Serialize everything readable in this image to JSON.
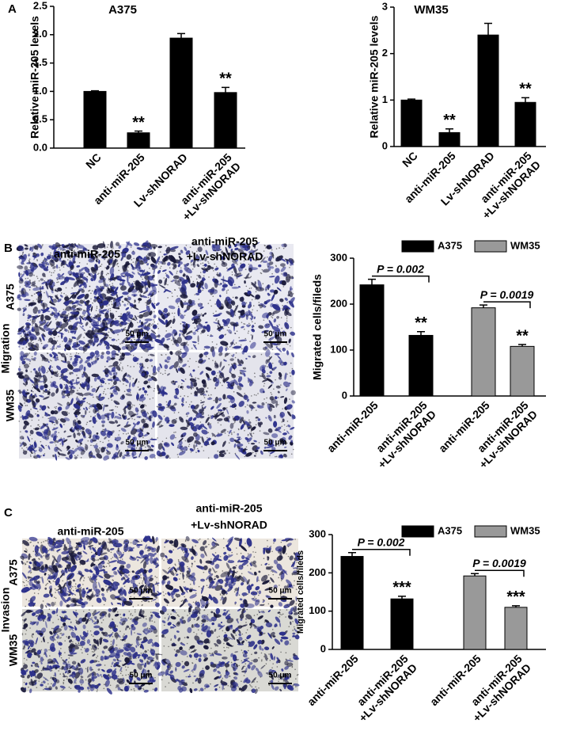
{
  "chart_data": [
    {
      "type": "bar",
      "title": "A375",
      "y_label": "Relative miR-205 levels",
      "categories": [
        [
          "NC"
        ],
        [
          "anti-miR-205"
        ],
        [
          "Lv-shNORAD"
        ],
        [
          "anti-miR-205",
          "+Lv-shNORAD"
        ]
      ],
      "values": [
        1.0,
        0.27,
        1.94,
        0.98
      ],
      "errors": [
        0.01,
        0.03,
        0.08,
        0.09
      ],
      "color": "#000000",
      "significance": [
        null,
        "**",
        null,
        "**"
      ],
      "ylim": [
        0,
        2.5
      ],
      "yticks": [
        {
          "value": 0,
          "label": "0.0"
        },
        {
          "value": 0.5,
          "label": "0.5"
        },
        {
          "value": 1,
          "label": "1.0"
        },
        {
          "value": 1.5,
          "label": "1.5"
        },
        {
          "value": 2,
          "label": "2.0"
        },
        {
          "value": 2.5,
          "label": "2.5"
        }
      ]
    },
    {
      "type": "bar",
      "title": "WM35",
      "y_label": "Relative miR-205 levels",
      "categories": [
        [
          "NC"
        ],
        [
          "anti-miR-205"
        ],
        [
          "Lv-shNORAD"
        ],
        [
          "anti-miR-205",
          "+Lv-shNORAD"
        ]
      ],
      "values": [
        1.0,
        0.3,
        2.4,
        0.95
      ],
      "errors": [
        0.02,
        0.08,
        0.25,
        0.1
      ],
      "color": "#000000",
      "significance": [
        null,
        "**",
        null,
        "**"
      ],
      "ylim": [
        0,
        3
      ],
      "yticks": [
        0,
        1,
        2,
        3
      ]
    },
    {
      "type": "grouped_bar",
      "y_label": "Migrated cells/fileds",
      "categories": [
        [
          "anti-miR-205"
        ],
        [
          "anti-miR-205",
          "+Lv-shNORAD"
        ]
      ],
      "series": [
        {
          "name": "A375",
          "color": "#000000",
          "values": [
            242,
            132
          ],
          "errors": [
            12,
            8
          ],
          "significance": [
            null,
            "**"
          ],
          "p_value": "P = 0.002"
        },
        {
          "name": "WM35",
          "color": "#999999",
          "values": [
            192,
            108
          ],
          "errors": [
            6,
            4
          ],
          "significance": [
            null,
            "**"
          ],
          "p_value": "P = 0.0019"
        }
      ],
      "ylim": [
        0,
        300
      ],
      "yticks": [
        0,
        100,
        200,
        300
      ]
    },
    {
      "type": "grouped_bar",
      "y_label": "Migrated cells/fileds",
      "categories": [
        [
          "anti-miR-205"
        ],
        [
          "anti-miR-205",
          "+Lv-shNORAD"
        ]
      ],
      "series": [
        {
          "name": "A375",
          "color": "#000000",
          "values": [
            243,
            132
          ],
          "errors": [
            10,
            7
          ],
          "significance": [
            null,
            "***"
          ],
          "p_value": "P = 0.002"
        },
        {
          "name": "WM35",
          "color": "#999999",
          "values": [
            192,
            110
          ],
          "errors": [
            6,
            4
          ],
          "significance": [
            null,
            "***"
          ],
          "p_value": "P = 0.0019"
        }
      ],
      "ylim": [
        0,
        300
      ],
      "yticks": [
        0,
        100,
        200,
        300
      ]
    }
  ],
  "panels": {
    "a": "A",
    "b": "B",
    "c": "C"
  },
  "image_panels": {
    "migration": {
      "label": "Migration",
      "col1": "anti-miR-205",
      "col2": [
        "anti-miR-205",
        "+Lv-shNORAD"
      ],
      "row1": "A375",
      "row2": "WM35"
    },
    "invasion": {
      "label": "Invasion",
      "col1": "anti-miR-205",
      "col2": [
        "anti-miR-205",
        "+Lv-shNORAD"
      ],
      "row1": "A375",
      "row2": "WM35"
    },
    "scale_bar": "50 μm"
  }
}
